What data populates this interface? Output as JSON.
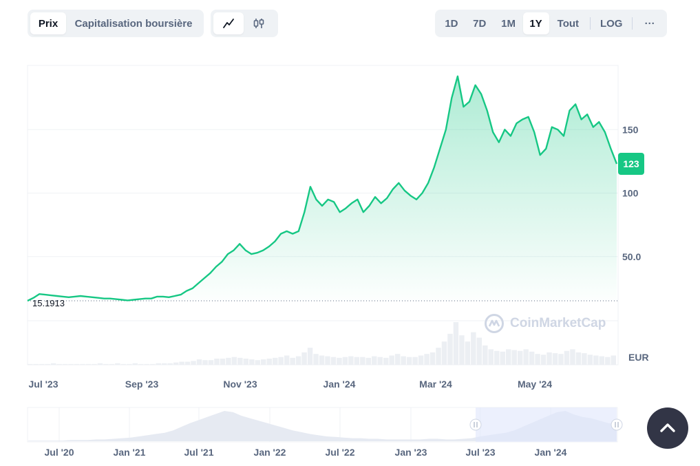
{
  "toolbar": {
    "type_tabs": [
      {
        "label": "Prix",
        "active": true
      },
      {
        "label": "Capitalisation boursière",
        "active": false
      }
    ],
    "style_tabs": [
      {
        "icon": "line-chart-icon",
        "active": true
      },
      {
        "icon": "candlestick-icon",
        "active": false
      }
    ],
    "range_tabs": [
      {
        "label": "1D",
        "active": false
      },
      {
        "label": "7D",
        "active": false
      },
      {
        "label": "1M",
        "active": false
      },
      {
        "label": "1Y",
        "active": true
      },
      {
        "label": "Tout",
        "active": false
      }
    ],
    "log_label": "LOG",
    "more_label": "···"
  },
  "current_price": "123",
  "start_price": "15.1913",
  "currency": "EUR",
  "watermark": "CoinMarketCap",
  "colors": {
    "accent": "#16c784",
    "volume": "#eceff3",
    "navigator_fill": "#e6eaf2",
    "navigator_window": "#e8edfb",
    "scroll_button": "#323546"
  },
  "chart_data": [
    {
      "type": "area",
      "title": "",
      "x_tick_labels": [
        "Jul '23",
        "Sep '23",
        "Nov '23",
        "Jan '24",
        "Mar '24",
        "May '24"
      ],
      "y_ticks": [
        {
          "label": "50.0",
          "value": 50
        },
        {
          "label": "100",
          "value": 100
        },
        {
          "label": "150",
          "value": 150
        }
      ],
      "ylim": [
        15.1913,
        195
      ],
      "series": [
        {
          "values": [
            15.19,
            17.5,
            20.5,
            20,
            19.5,
            19,
            18.5,
            18,
            18.5,
            19,
            18.5,
            18,
            17.5,
            17,
            17,
            16.5,
            16,
            15.5,
            16,
            16.5,
            17,
            17,
            18.5,
            18.5,
            18,
            19,
            20,
            23,
            25,
            29,
            33,
            37,
            42,
            46,
            52,
            55,
            60,
            55,
            52,
            53,
            55,
            58,
            62,
            68,
            70,
            68,
            70,
            85,
            105,
            95,
            90,
            95,
            93,
            85,
            88,
            92,
            95,
            85,
            90,
            97,
            92,
            96,
            103,
            108,
            102,
            98,
            95,
            100,
            108,
            120,
            135,
            150,
            175,
            192,
            168,
            172,
            185,
            178,
            165,
            148,
            140,
            150,
            145,
            155,
            158,
            160,
            148,
            130,
            135,
            152,
            150,
            145,
            165,
            170,
            158,
            162,
            152,
            156,
            148,
            135,
            123
          ]
        }
      ],
      "volume": [
        1,
        1,
        1,
        1,
        2,
        1,
        1,
        1,
        1,
        1,
        1,
        1,
        2,
        1,
        1,
        2,
        1,
        1,
        2,
        1,
        1,
        1,
        2,
        2,
        2,
        3,
        4,
        4,
        5,
        7,
        6,
        6,
        8,
        8,
        9,
        10,
        9,
        8,
        7,
        6,
        7,
        8,
        9,
        10,
        12,
        9,
        11,
        16,
        22,
        14,
        12,
        11,
        10,
        9,
        10,
        11,
        10,
        10,
        9,
        11,
        10,
        9,
        12,
        14,
        11,
        10,
        10,
        12,
        14,
        16,
        22,
        30,
        40,
        55,
        38,
        30,
        42,
        35,
        25,
        20,
        18,
        17,
        20,
        19,
        18,
        20,
        17,
        14,
        13,
        16,
        15,
        14,
        18,
        20,
        16,
        15,
        13,
        12,
        11,
        10,
        12
      ]
    },
    {
      "type": "area",
      "name_role": "navigator",
      "x_tick_labels": [
        "Jul '20",
        "Jan '21",
        "Jul '21",
        "Jan '22",
        "Jul '22",
        "Jan '23",
        "Jul '23",
        "Jan '24"
      ],
      "selected_range": [
        "Jul '23",
        "end"
      ],
      "series": [
        {
          "values": [
            1,
            1,
            1,
            1,
            1,
            2,
            2,
            2,
            3,
            3,
            4,
            5,
            6,
            8,
            10,
            12,
            14,
            18,
            24,
            30,
            35,
            40,
            45,
            50,
            48,
            42,
            38,
            34,
            30,
            26,
            22,
            18,
            15,
            12,
            10,
            8,
            7,
            6,
            5,
            5,
            4,
            4,
            3,
            3,
            3,
            3,
            3,
            4,
            4,
            3,
            3,
            4,
            5,
            8,
            10,
            12,
            14,
            18,
            24,
            30,
            36,
            42,
            48,
            50,
            44,
            40,
            38,
            34,
            30,
            28
          ]
        }
      ]
    }
  ]
}
